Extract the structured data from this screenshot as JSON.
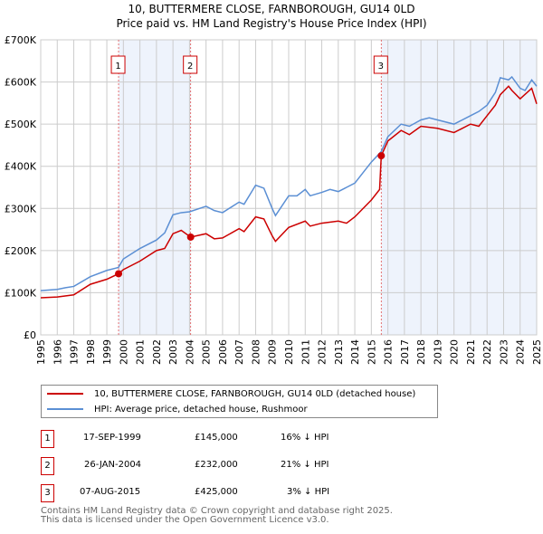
{
  "chart_data": {
    "type": "line",
    "title": "10, BUTTERMERE CLOSE, FARNBOROUGH, GU14 0LD",
    "subtitle": "Price paid vs. HM Land Registry's House Price Index (HPI)",
    "xlim": [
      1995,
      2025
    ],
    "ylim": [
      0,
      700000
    ],
    "x_ticks": [
      "1995",
      "1996",
      "1997",
      "1998",
      "1999",
      "2000",
      "2001",
      "2002",
      "2003",
      "2004",
      "2005",
      "2006",
      "2007",
      "2008",
      "2009",
      "2010",
      "2011",
      "2012",
      "2013",
      "2014",
      "2015",
      "2016",
      "2017",
      "2018",
      "2019",
      "2020",
      "2021",
      "2022",
      "2023",
      "2024",
      "2025"
    ],
    "y_ticks": [
      {
        "v": 0,
        "label": "£0"
      },
      {
        "v": 100000,
        "label": "£100K"
      },
      {
        "v": 200000,
        "label": "£200K"
      },
      {
        "v": 300000,
        "label": "£300K"
      },
      {
        "v": 400000,
        "label": "£400K"
      },
      {
        "v": 500000,
        "label": "£500K"
      },
      {
        "v": 600000,
        "label": "£600K"
      },
      {
        "v": 700000,
        "label": "£700K"
      }
    ],
    "grid": true,
    "series": [
      {
        "name": "10, BUTTERMERE CLOSE, FARNBOROUGH, GU14 0LD (detached house)",
        "color": "#cc0000",
        "points": [
          [
            1995,
            88000
          ],
          [
            1996,
            90000
          ],
          [
            1997,
            95000
          ],
          [
            1998,
            120000
          ],
          [
            1999,
            132000
          ],
          [
            1999.71,
            145000
          ],
          [
            2000,
            155000
          ],
          [
            2001,
            175000
          ],
          [
            2002,
            200000
          ],
          [
            2002.5,
            205000
          ],
          [
            2003,
            240000
          ],
          [
            2003.5,
            248000
          ],
          [
            2004.07,
            232000
          ],
          [
            2005,
            240000
          ],
          [
            2005.5,
            228000
          ],
          [
            2006,
            230000
          ],
          [
            2007,
            252000
          ],
          [
            2007.3,
            245000
          ],
          [
            2008,
            280000
          ],
          [
            2008.5,
            275000
          ],
          [
            2009,
            235000
          ],
          [
            2009.2,
            222000
          ],
          [
            2010,
            255000
          ],
          [
            2011,
            270000
          ],
          [
            2011.3,
            258000
          ],
          [
            2012,
            265000
          ],
          [
            2013,
            270000
          ],
          [
            2013.5,
            265000
          ],
          [
            2014,
            280000
          ],
          [
            2015,
            320000
          ],
          [
            2015.5,
            345000
          ],
          [
            2015.6,
            425000
          ],
          [
            2016,
            460000
          ],
          [
            2016.8,
            485000
          ],
          [
            2017.3,
            475000
          ],
          [
            2018,
            495000
          ],
          [
            2019,
            490000
          ],
          [
            2020,
            480000
          ],
          [
            2021,
            500000
          ],
          [
            2021.5,
            495000
          ],
          [
            2022,
            520000
          ],
          [
            2022.5,
            545000
          ],
          [
            2022.8,
            570000
          ],
          [
            2023.3,
            590000
          ],
          [
            2023.5,
            580000
          ],
          [
            2024,
            560000
          ],
          [
            2024.7,
            585000
          ],
          [
            2025,
            548000
          ]
        ]
      },
      {
        "name": "HPI: Average price, detached house, Rushmoor",
        "color": "#5b8fd4",
        "points": [
          [
            1995,
            105000
          ],
          [
            1996,
            108000
          ],
          [
            1996.5,
            112000
          ],
          [
            1997,
            115000
          ],
          [
            1998,
            138000
          ],
          [
            1999,
            153000
          ],
          [
            1999.7,
            160000
          ],
          [
            2000,
            180000
          ],
          [
            2001,
            205000
          ],
          [
            2002,
            225000
          ],
          [
            2002.5,
            242000
          ],
          [
            2003,
            285000
          ],
          [
            2003.5,
            290000
          ],
          [
            2004,
            292000
          ],
          [
            2005,
            305000
          ],
          [
            2005.5,
            295000
          ],
          [
            2006,
            290000
          ],
          [
            2007,
            315000
          ],
          [
            2007.3,
            310000
          ],
          [
            2008,
            355000
          ],
          [
            2008.5,
            348000
          ],
          [
            2009,
            300000
          ],
          [
            2009.2,
            283000
          ],
          [
            2010,
            330000
          ],
          [
            2010.5,
            330000
          ],
          [
            2011,
            345000
          ],
          [
            2011.3,
            330000
          ],
          [
            2012,
            338000
          ],
          [
            2012.5,
            345000
          ],
          [
            2013,
            340000
          ],
          [
            2013.5,
            350000
          ],
          [
            2014,
            360000
          ],
          [
            2014.5,
            385000
          ],
          [
            2015,
            410000
          ],
          [
            2015.6,
            435000
          ],
          [
            2016,
            470000
          ],
          [
            2016.8,
            500000
          ],
          [
            2017.3,
            495000
          ],
          [
            2018,
            510000
          ],
          [
            2018.5,
            515000
          ],
          [
            2019,
            510000
          ],
          [
            2020,
            500000
          ],
          [
            2021,
            520000
          ],
          [
            2021.5,
            530000
          ],
          [
            2022,
            545000
          ],
          [
            2022.5,
            575000
          ],
          [
            2022.8,
            610000
          ],
          [
            2023.3,
            605000
          ],
          [
            2023.5,
            612000
          ],
          [
            2024,
            585000
          ],
          [
            2024.3,
            580000
          ],
          [
            2024.7,
            605000
          ],
          [
            2025,
            590000
          ]
        ]
      }
    ],
    "sales": [
      {
        "id": "1",
        "x": 1999.71,
        "price": 145000,
        "date": "17-SEP-1999",
        "price_label": "£145,000",
        "hpi": "16% ↓ HPI"
      },
      {
        "id": "2",
        "x": 2004.07,
        "price": 232000,
        "date": "26-JAN-2004",
        "price_label": "£232,000",
        "hpi": "21% ↓ HPI"
      },
      {
        "id": "3",
        "x": 2015.6,
        "price": 425000,
        "date": "07-AUG-2015",
        "price_label": "£425,000",
        "hpi": "3% ↓ HPI"
      }
    ],
    "shaded": [
      [
        1999.71,
        2004.07
      ],
      [
        2015.6,
        2025
      ]
    ],
    "legend_position": "below"
  },
  "footer": {
    "line1": "Contains HM Land Registry data © Crown copyright and database right 2025.",
    "line2": "This data is licensed under the Open Government Licence v3.0."
  }
}
